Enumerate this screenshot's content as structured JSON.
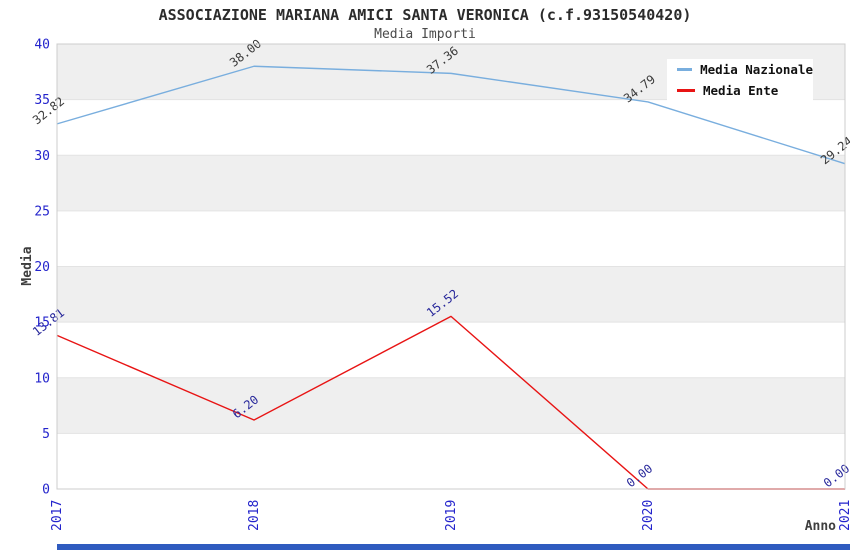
{
  "title": "ASSOCIAZIONE MARIANA AMICI SANTA VERONICA (c.f.93150540420)",
  "subtitle": "Media Importi",
  "chart_data": {
    "type": "line",
    "categories": [
      "2017",
      "2018",
      "2019",
      "2020",
      "2021"
    ],
    "series": [
      {
        "name": "Media Nazionale",
        "color": "#79aede",
        "label_color": "#3a3a3a",
        "values": [
          32.82,
          38.0,
          37.36,
          34.79,
          29.24
        ],
        "value_labels": [
          "32.82",
          "38.00",
          "37.36",
          "34.79",
          "29.24"
        ]
      },
      {
        "name": "Media Ente",
        "color": "#e81414",
        "label_color": "#28289b",
        "values": [
          13.81,
          6.2,
          15.52,
          0.0,
          0.0
        ],
        "value_labels": [
          "13.81",
          "6.20",
          "15.52",
          "0.00",
          "0.00"
        ]
      }
    ],
    "xlabel": "Anno",
    "ylabel": "Media",
    "ylim": [
      0,
      40
    ],
    "ytick_step": 5,
    "yticks": [
      "0",
      "5",
      "10",
      "15",
      "20",
      "25",
      "30",
      "35",
      "40"
    ],
    "legend_position": "top-right",
    "grid": "horizontal-bands",
    "band_colors": [
      "#ffffff",
      "#efefef"
    ],
    "gridline_color": "#e3e3e3",
    "border_color": "#cccccc",
    "tick_color": "#2424cc",
    "axis_title_color": "#3f3f3f",
    "value_label_rotation": -38,
    "xtick_rotation": -90
  },
  "bottom_bar_color": "#2f5bbf"
}
